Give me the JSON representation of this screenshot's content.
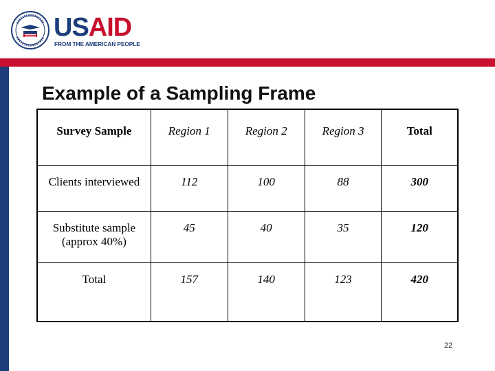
{
  "brand": {
    "wordmark_us": "US",
    "wordmark_aid": "AID",
    "tagline": "FROM THE AMERICAN PEOPLE",
    "colors": {
      "blue": "#1d3e7a",
      "red": "#c8102e"
    }
  },
  "slide": {
    "title": "Example of a Sampling Frame",
    "page_number": "22"
  },
  "table": {
    "headers": [
      "Survey Sample",
      "Region 1",
      "Region 2",
      "Region 3",
      "Total"
    ],
    "rows": [
      {
        "label": "Clients interviewed",
        "values": [
          "112",
          "100",
          "88"
        ],
        "total": "300"
      },
      {
        "label": "Substitute sample (approx 40%)",
        "values": [
          "45",
          "40",
          "35"
        ],
        "total": "120"
      },
      {
        "label": "Total",
        "values": [
          "157",
          "140",
          "123"
        ],
        "total": "420"
      }
    ]
  }
}
